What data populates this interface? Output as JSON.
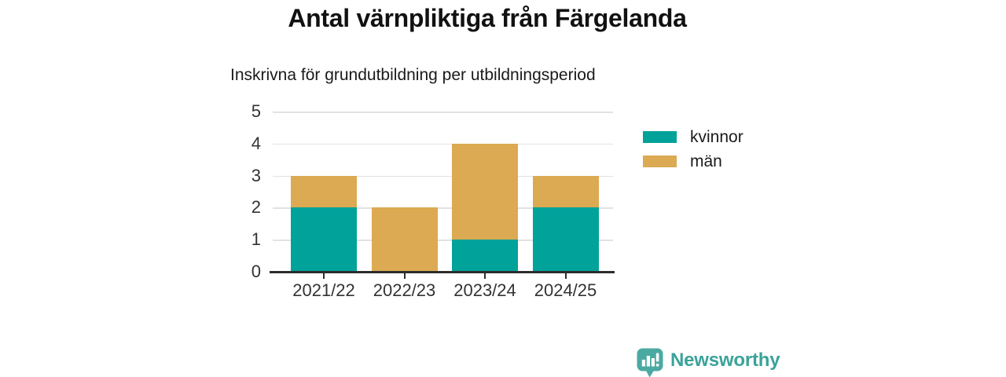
{
  "chart_data": {
    "type": "bar",
    "stacked": true,
    "title": "Antal värnpliktiga från Färgelanda",
    "subtitle": "Inskrivna för grundutbildning per utbildningsperiod",
    "categories": [
      "2021/22",
      "2022/23",
      "2023/24",
      "2024/25"
    ],
    "series": [
      {
        "name": "kvinnor",
        "color": "#00a29a",
        "values": [
          2,
          0,
          1,
          2
        ]
      },
      {
        "name": "män",
        "color": "#dcaa52",
        "values": [
          1,
          2,
          3,
          1
        ]
      }
    ],
    "xlabel": "",
    "ylabel": "",
    "ylim": [
      0,
      5
    ],
    "yticks": [
      0,
      1,
      2,
      3,
      4,
      5
    ],
    "grid": true,
    "legend_position": "right",
    "axis_color": "#2d2d2d",
    "gridline_color": "#e2e2e2",
    "text_color": "#333333"
  },
  "branding": {
    "logo_text": "Newsworthy",
    "logo_color": "#3aa39a",
    "logo_icon": "chart-speech-bubble-icon"
  }
}
